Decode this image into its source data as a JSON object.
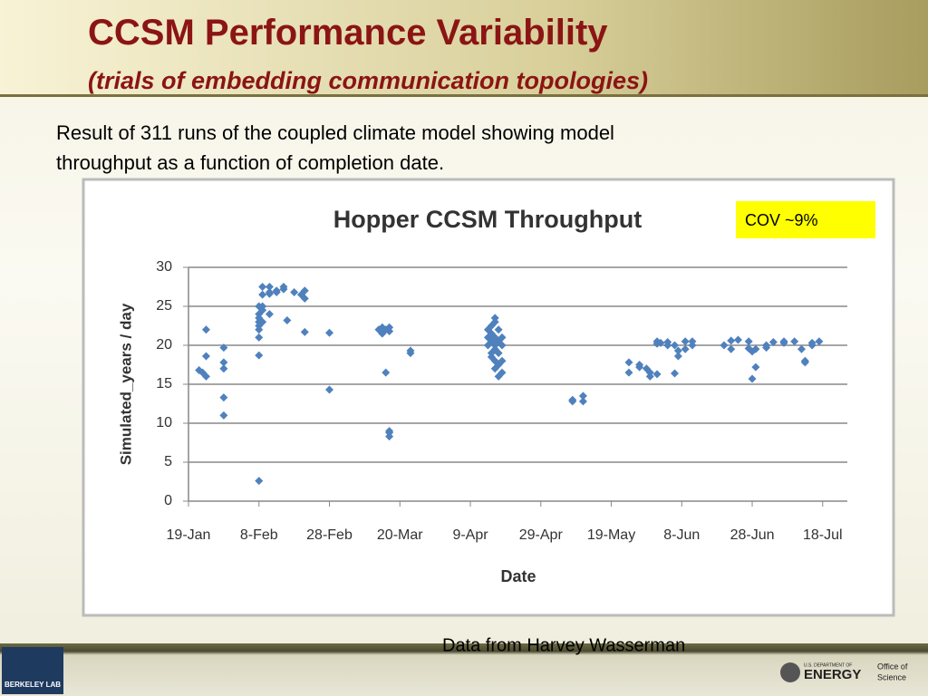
{
  "slide": {
    "title": "CCSM Performance Variability",
    "subtitle": "(trials of embedding communication topologies)",
    "body": [
      "Result of 311 runs of the coupled climate model showing model",
      "throughput as a function of completion date."
    ],
    "note": "COV ~9%",
    "credit": "Data from Harvey Wasserman",
    "logo_left": "BERKELEY LAB",
    "logo_right": [
      "U.S. DEPARTMENT OF",
      "ENERGY",
      "Office of",
      "Science"
    ]
  },
  "chart_data": {
    "type": "scatter",
    "title": "Hopper CCSM Throughput",
    "x_label": "Date",
    "y_label": "Simulated_years / day",
    "color": "#4f81bd",
    "grid": true,
    "xlim": [
      0,
      187
    ],
    "ylim": [
      0,
      30
    ],
    "yticks": [
      0,
      5,
      10,
      15,
      20,
      25,
      30
    ],
    "xticks": [
      {
        "value": 0,
        "label": "19-Jan"
      },
      {
        "value": 20,
        "label": "8-Feb"
      },
      {
        "value": 40,
        "label": "28-Feb"
      },
      {
        "value": 60,
        "label": "20-Mar"
      },
      {
        "value": 80,
        "label": "9-Apr"
      },
      {
        "value": 100,
        "label": "29-Apr"
      },
      {
        "value": 120,
        "label": "19-May"
      },
      {
        "value": 140,
        "label": "8-Jun"
      },
      {
        "value": 160,
        "label": "28-Jun"
      },
      {
        "value": 180,
        "label": "18-Jul"
      }
    ],
    "x": [
      3,
      4,
      5,
      5,
      5,
      10,
      10,
      10,
      10,
      10,
      20,
      20,
      20,
      20,
      20,
      20,
      20,
      20,
      20,
      21,
      21,
      21,
      21,
      21,
      23,
      23,
      23,
      23,
      25,
      25,
      27,
      27,
      28,
      30,
      32,
      33,
      33,
      33,
      40,
      40,
      54,
      55,
      55,
      56,
      56,
      57,
      57,
      57,
      57,
      57,
      63,
      63,
      85,
      85,
      85,
      86,
      86,
      86,
      86,
      86,
      87,
      87,
      87,
      87,
      87,
      87,
      87,
      88,
      88,
      88,
      88,
      88,
      89,
      89,
      89,
      89,
      109,
      109,
      112,
      112,
      125,
      125,
      128,
      128,
      130,
      131,
      131,
      133,
      133,
      133,
      134,
      136,
      136,
      138,
      138,
      139,
      139,
      141,
      141,
      143,
      143,
      152,
      154,
      154,
      156,
      159,
      159,
      160,
      160,
      161,
      161,
      164,
      164,
      166,
      169,
      169,
      172,
      174,
      175,
      175,
      177,
      177,
      179
    ],
    "values": [
      16.8,
      16.5,
      22,
      18.6,
      16,
      13.3,
      19.7,
      17.8,
      17,
      11,
      2.6,
      18.7,
      21,
      22,
      23,
      24,
      25,
      23.5,
      22.5,
      24.5,
      25,
      26.5,
      27.5,
      23,
      26.8,
      27.5,
      26.6,
      24,
      27,
      26.8,
      27.2,
      27.5,
      23.2,
      26.8,
      26.5,
      27,
      26,
      21.7,
      21.6,
      14.3,
      22,
      21.5,
      22.3,
      16.5,
      22,
      8.3,
      9,
      21.8,
      22.3,
      8.8,
      19,
      19.3,
      20,
      21,
      22,
      19,
      20.5,
      21.5,
      22.5,
      18.5,
      17,
      18,
      19.5,
      20,
      21,
      23,
      23.5,
      16,
      17.5,
      19,
      20.5,
      22,
      16.5,
      18,
      20,
      21,
      13,
      12.8,
      13.5,
      12.8,
      16.5,
      17.8,
      17.5,
      17.2,
      17,
      16,
      16.5,
      16.3,
      20.2,
      20.5,
      20.3,
      20.4,
      20,
      16.4,
      20,
      19.3,
      18.6,
      19.5,
      20.5,
      20.5,
      20,
      20,
      20.6,
      19.5,
      20.7,
      20.5,
      19.6,
      19.2,
      15.7,
      19.5,
      17.2,
      20,
      19.7,
      20.4,
      20.5,
      20.3,
      20.5,
      19.5,
      18,
      17.8,
      20,
      20.3,
      20.5
    ]
  }
}
